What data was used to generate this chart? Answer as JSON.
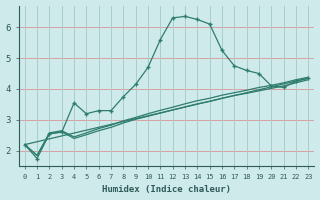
{
  "xlabel": "Humidex (Indice chaleur)",
  "bg_color": "#ceeaea",
  "line_color": "#2e7d6e",
  "grid_color_h": "#d9a0a0",
  "grid_color_v": "#a8cccc",
  "xlim": [
    -0.5,
    23.5
  ],
  "ylim": [
    1.5,
    6.7
  ],
  "xticks": [
    0,
    1,
    2,
    3,
    4,
    5,
    6,
    7,
    8,
    9,
    10,
    11,
    12,
    13,
    14,
    15,
    16,
    17,
    18,
    19,
    20,
    21,
    22,
    23
  ],
  "yticks": [
    2,
    3,
    4,
    5,
    6
  ],
  "series": [
    {
      "x": [
        0,
        1,
        2,
        3,
        4,
        5,
        6,
        7,
        8,
        9,
        10,
        11,
        12,
        13,
        14,
        15,
        16,
        17,
        18,
        19,
        20,
        21,
        22,
        23
      ],
      "y": [
        2.2,
        1.75,
        2.55,
        2.6,
        3.55,
        3.2,
        3.3,
        3.3,
        3.75,
        4.15,
        4.7,
        5.6,
        6.3,
        6.35,
        6.25,
        6.1,
        5.25,
        4.75,
        4.6,
        4.5,
        4.1,
        4.05,
        4.25,
        4.35
      ],
      "marker": true
    },
    {
      "x": [
        0,
        1,
        2,
        3,
        4,
        5,
        6,
        7,
        8,
        9,
        10,
        11,
        12,
        13,
        14,
        15,
        16,
        17,
        18,
        19,
        20,
        21,
        22,
        23
      ],
      "y": [
        2.2,
        1.85,
        2.55,
        2.62,
        2.4,
        2.52,
        2.65,
        2.76,
        2.9,
        3.02,
        3.12,
        3.22,
        3.32,
        3.42,
        3.52,
        3.6,
        3.7,
        3.79,
        3.86,
        3.94,
        4.02,
        4.1,
        4.2,
        4.3
      ],
      "marker": false
    },
    {
      "x": [
        0,
        1,
        2,
        3,
        4,
        5,
        6,
        7,
        8,
        9,
        10,
        11,
        12,
        13,
        14,
        15,
        16,
        17,
        18,
        19,
        20,
        21,
        22,
        23
      ],
      "y": [
        2.2,
        1.85,
        2.58,
        2.65,
        2.45,
        2.58,
        2.72,
        2.83,
        2.97,
        3.08,
        3.2,
        3.31,
        3.41,
        3.52,
        3.62,
        3.7,
        3.8,
        3.88,
        3.96,
        4.05,
        4.12,
        4.2,
        4.3,
        4.38
      ],
      "marker": false
    },
    {
      "x": [
        0,
        23
      ],
      "y": [
        2.2,
        4.35
      ],
      "marker": false
    }
  ]
}
